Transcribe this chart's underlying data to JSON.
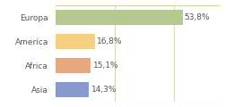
{
  "categories": [
    "Europa",
    "America",
    "Africa",
    "Asia"
  ],
  "values": [
    53.8,
    16.8,
    15.1,
    14.3
  ],
  "labels": [
    "53,8%",
    "16,8%",
    "15,1%",
    "14,3%"
  ],
  "bar_colors": [
    "#b5c98e",
    "#f5d080",
    "#e8a87c",
    "#8899cc"
  ],
  "background_color": "#ffffff",
  "border_color": "#c8d8a0",
  "xlim": [
    0,
    70
  ],
  "label_fontsize": 6.5,
  "value_fontsize": 6.5,
  "bar_height": 0.65
}
